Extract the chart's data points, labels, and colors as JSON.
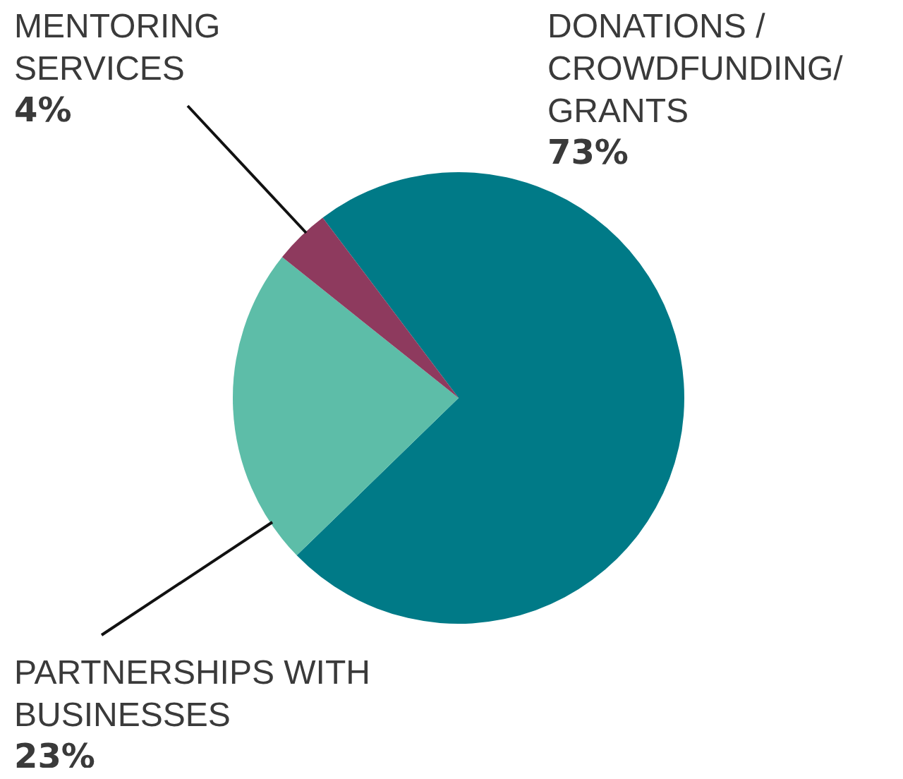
{
  "chart_data": {
    "type": "pie",
    "categories": [
      "DONATIONS / CROWDFUNDING/ GRANTS",
      "PARTNERSHIPS WITH BUSINESSES",
      "MENTORING SERVICES"
    ],
    "values": [
      73,
      23,
      4
    ],
    "colors": [
      "#007a87",
      "#5dbda8",
      "#8e3a5e"
    ],
    "value_labels": [
      "73%",
      "23%",
      "4%"
    ],
    "legend": false
  }
}
